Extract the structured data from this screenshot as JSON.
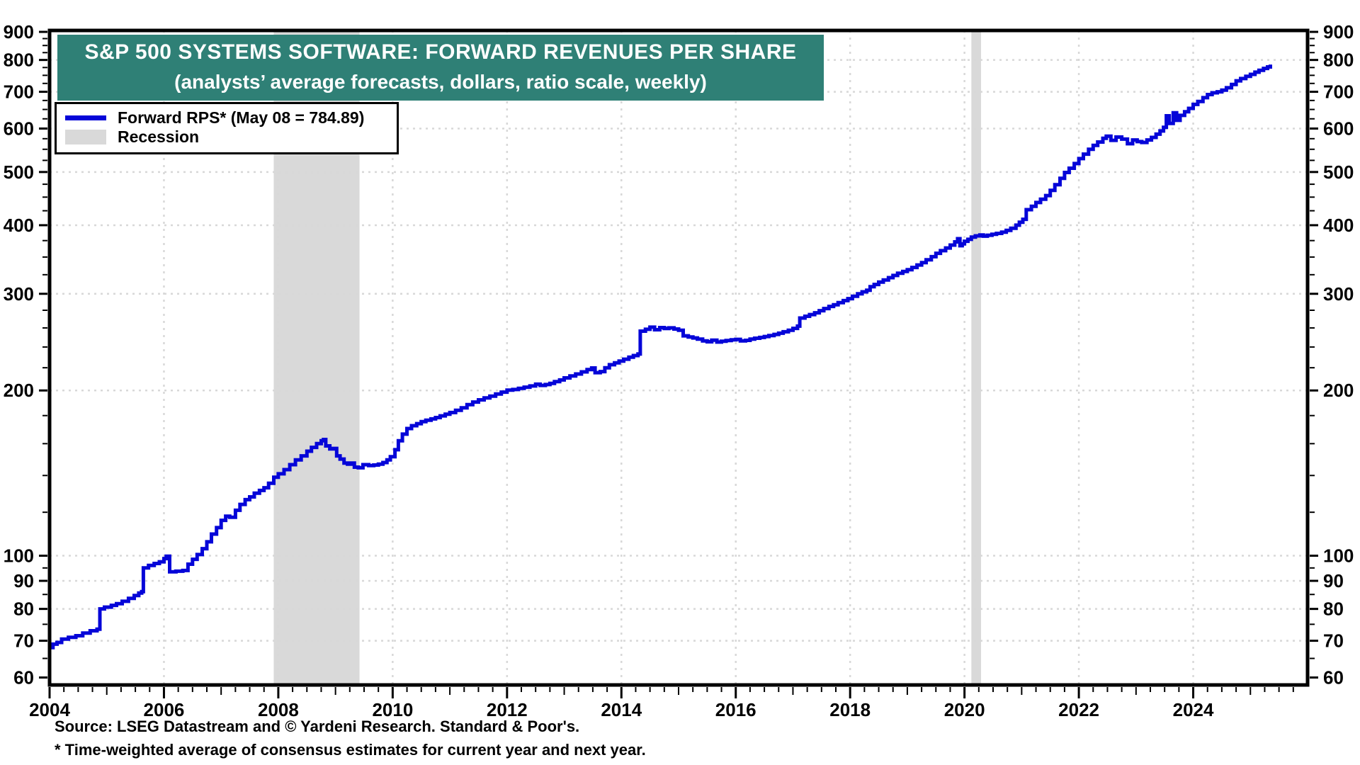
{
  "chart": {
    "title": "S&P 500 SYSTEMS SOFTWARE: FORWARD REVENUES PER SHARE",
    "subtitle": "(analysts’ average forecasts, dollars, ratio scale, weekly)",
    "banner_color": "#2F8076",
    "line_color": "#0505D8",
    "recession_color": "#D9D9D9",
    "grid_color": "#D8D8D8",
    "axis_color": "#000000"
  },
  "legend": {
    "entries": [
      {
        "label": "Forward RPS* (May 08 = 784.89)",
        "swatch": "line",
        "color": "#0505D8"
      },
      {
        "label": "Recession",
        "swatch": "box",
        "color": "#D9D9D9"
      }
    ]
  },
  "footer": {
    "source": "Source: LSEG Datastream and © Yardeni Research. Standard & Poor's.",
    "footnote": "* Time-weighted average of consensus estimates for current year and next year."
  },
  "chart_data": {
    "type": "line",
    "title": "S&P 500 Systems Software: Forward Revenues Per Share",
    "ylabel": "dollars (ratio scale)",
    "xlabel": "weekly",
    "scale": "log",
    "x_range": [
      2004,
      2026
    ],
    "y_range": [
      60,
      900
    ],
    "y_ticks_major": [
      900,
      800,
      700,
      600,
      500,
      400,
      300,
      200,
      100,
      90,
      80,
      70,
      60
    ],
    "y_ticks_minor": [
      65,
      75,
      85,
      95,
      120,
      140,
      160,
      180,
      220,
      240,
      260,
      280,
      325,
      350,
      375,
      425,
      450,
      475,
      525,
      550,
      575,
      625,
      650,
      675,
      725,
      750,
      775,
      825,
      850,
      875
    ],
    "y_gridlines": [
      800,
      700,
      600,
      500,
      400,
      300,
      200,
      100,
      90,
      80,
      70
    ],
    "x_ticks_labeled": [
      2004,
      2006,
      2008,
      2010,
      2012,
      2014,
      2016,
      2018,
      2020,
      2022,
      2024
    ],
    "x_gridlines": [
      2006,
      2008,
      2010,
      2012,
      2014,
      2016,
      2018,
      2020,
      2022,
      2024
    ],
    "x_minor_tick_step": 0.25,
    "recession_bands": [
      [
        2007.92,
        2009.42
      ],
      [
        2020.12,
        2020.29
      ]
    ],
    "last_value_label": "May 08 = 784.89",
    "series": [
      {
        "name": "Forward RPS*",
        "points": [
          [
            2004.0,
            68
          ],
          [
            2004.06,
            69
          ],
          [
            2004.13,
            69.5
          ],
          [
            2004.21,
            70.5
          ],
          [
            2004.33,
            71
          ],
          [
            2004.46,
            71.5
          ],
          [
            2004.58,
            72.3
          ],
          [
            2004.71,
            73
          ],
          [
            2004.83,
            73.5
          ],
          [
            2004.88,
            80
          ],
          [
            2004.96,
            80.6
          ],
          [
            2005.08,
            81.2
          ],
          [
            2005.17,
            81.8
          ],
          [
            2005.27,
            82.6
          ],
          [
            2005.38,
            83.6
          ],
          [
            2005.48,
            84.6
          ],
          [
            2005.56,
            85.5
          ],
          [
            2005.61,
            86
          ],
          [
            2005.64,
            95
          ],
          [
            2005.73,
            96
          ],
          [
            2005.83,
            96.8
          ],
          [
            2005.92,
            97.5
          ],
          [
            2006.0,
            98.8
          ],
          [
            2006.04,
            99.8
          ],
          [
            2006.1,
            93.5
          ],
          [
            2006.21,
            93.7
          ],
          [
            2006.33,
            94
          ],
          [
            2006.42,
            96.5
          ],
          [
            2006.5,
            98.5
          ],
          [
            2006.58,
            100.5
          ],
          [
            2006.67,
            103
          ],
          [
            2006.75,
            106
          ],
          [
            2006.83,
            109.5
          ],
          [
            2006.92,
            112.5
          ],
          [
            2007.0,
            116
          ],
          [
            2007.08,
            118
          ],
          [
            2007.15,
            117.5
          ],
          [
            2007.25,
            121
          ],
          [
            2007.33,
            124
          ],
          [
            2007.42,
            126.5
          ],
          [
            2007.5,
            128
          ],
          [
            2007.58,
            130
          ],
          [
            2007.67,
            131.5
          ],
          [
            2007.75,
            133
          ],
          [
            2007.83,
            135.5
          ],
          [
            2007.92,
            139
          ],
          [
            2008.0,
            141
          ],
          [
            2008.1,
            143.5
          ],
          [
            2008.2,
            146.5
          ],
          [
            2008.3,
            149.5
          ],
          [
            2008.4,
            152
          ],
          [
            2008.5,
            155
          ],
          [
            2008.58,
            157.5
          ],
          [
            2008.67,
            160
          ],
          [
            2008.75,
            162
          ],
          [
            2008.79,
            162.8
          ],
          [
            2008.83,
            158.5
          ],
          [
            2008.9,
            156.5
          ],
          [
            2008.96,
            156.8
          ],
          [
            2009.02,
            152
          ],
          [
            2009.08,
            150
          ],
          [
            2009.15,
            147.5
          ],
          [
            2009.21,
            146.8
          ],
          [
            2009.27,
            147.5
          ],
          [
            2009.33,
            145
          ],
          [
            2009.4,
            144.6
          ],
          [
            2009.48,
            146.5
          ],
          [
            2009.58,
            146
          ],
          [
            2009.67,
            146.3
          ],
          [
            2009.75,
            146.8
          ],
          [
            2009.83,
            147.8
          ],
          [
            2009.9,
            149.5
          ],
          [
            2009.96,
            151.5
          ],
          [
            2010.04,
            156
          ],
          [
            2010.1,
            162
          ],
          [
            2010.17,
            166.5
          ],
          [
            2010.25,
            170.5
          ],
          [
            2010.33,
            172.5
          ],
          [
            2010.42,
            174
          ],
          [
            2010.5,
            175.5
          ],
          [
            2010.58,
            176.5
          ],
          [
            2010.67,
            177.5
          ],
          [
            2010.75,
            178.5
          ],
          [
            2010.83,
            179.8
          ],
          [
            2010.92,
            181
          ],
          [
            2011.0,
            182.3
          ],
          [
            2011.1,
            184
          ],
          [
            2011.2,
            186
          ],
          [
            2011.3,
            188.5
          ],
          [
            2011.4,
            190.5
          ],
          [
            2011.5,
            192.3
          ],
          [
            2011.6,
            193.8
          ],
          [
            2011.7,
            195.3
          ],
          [
            2011.8,
            197
          ],
          [
            2011.9,
            198.6
          ],
          [
            2012.0,
            200.3
          ],
          [
            2012.1,
            200.8
          ],
          [
            2012.2,
            201.8
          ],
          [
            2012.3,
            202.8
          ],
          [
            2012.4,
            203.8
          ],
          [
            2012.5,
            205.3
          ],
          [
            2012.58,
            204.3
          ],
          [
            2012.67,
            205
          ],
          [
            2012.75,
            206
          ],
          [
            2012.83,
            207.5
          ],
          [
            2012.92,
            209
          ],
          [
            2013.0,
            210.8
          ],
          [
            2013.1,
            212.5
          ],
          [
            2013.2,
            214.3
          ],
          [
            2013.3,
            216.2
          ],
          [
            2013.4,
            218.3
          ],
          [
            2013.48,
            219.8
          ],
          [
            2013.54,
            215.5
          ],
          [
            2013.63,
            216.5
          ],
          [
            2013.71,
            220
          ],
          [
            2013.79,
            222.8
          ],
          [
            2013.88,
            224.6
          ],
          [
            2013.96,
            226.3
          ],
          [
            2014.04,
            228
          ],
          [
            2014.13,
            230
          ],
          [
            2014.21,
            231.5
          ],
          [
            2014.29,
            233
          ],
          [
            2014.33,
            256.5
          ],
          [
            2014.42,
            258.5
          ],
          [
            2014.5,
            260.8
          ],
          [
            2014.58,
            258
          ],
          [
            2014.67,
            260.3
          ],
          [
            2014.75,
            259.3
          ],
          [
            2014.83,
            260
          ],
          [
            2014.92,
            258.8
          ],
          [
            2015.0,
            257.5
          ],
          [
            2015.08,
            251.5
          ],
          [
            2015.17,
            250.3
          ],
          [
            2015.25,
            249.3
          ],
          [
            2015.33,
            248
          ],
          [
            2015.42,
            246.3
          ],
          [
            2015.5,
            245.3
          ],
          [
            2015.58,
            247
          ],
          [
            2015.67,
            245
          ],
          [
            2015.75,
            245.8
          ],
          [
            2015.83,
            246.6
          ],
          [
            2015.92,
            247.3
          ],
          [
            2016.0,
            247.8
          ],
          [
            2016.08,
            246.3
          ],
          [
            2016.17,
            246.8
          ],
          [
            2016.25,
            248
          ],
          [
            2016.33,
            249
          ],
          [
            2016.42,
            249.8
          ],
          [
            2016.5,
            250.8
          ],
          [
            2016.58,
            251.8
          ],
          [
            2016.67,
            253
          ],
          [
            2016.75,
            254.3
          ],
          [
            2016.83,
            255.8
          ],
          [
            2016.92,
            257.5
          ],
          [
            2017.0,
            259.5
          ],
          [
            2017.08,
            262
          ],
          [
            2017.12,
            271
          ],
          [
            2017.21,
            273
          ],
          [
            2017.29,
            275
          ],
          [
            2017.38,
            277
          ],
          [
            2017.46,
            279.5
          ],
          [
            2017.54,
            282
          ],
          [
            2017.63,
            284.5
          ],
          [
            2017.71,
            286.5
          ],
          [
            2017.79,
            289
          ],
          [
            2017.88,
            291.5
          ],
          [
            2017.96,
            294
          ],
          [
            2018.04,
            297
          ],
          [
            2018.13,
            300
          ],
          [
            2018.21,
            302.5
          ],
          [
            2018.29,
            304.5
          ],
          [
            2018.35,
            309
          ],
          [
            2018.42,
            312
          ],
          [
            2018.5,
            315
          ],
          [
            2018.58,
            318
          ],
          [
            2018.67,
            321
          ],
          [
            2018.75,
            324
          ],
          [
            2018.83,
            327
          ],
          [
            2018.92,
            329.5
          ],
          [
            2019.0,
            332
          ],
          [
            2019.08,
            335
          ],
          [
            2019.17,
            338.5
          ],
          [
            2019.25,
            342
          ],
          [
            2019.33,
            346
          ],
          [
            2019.42,
            350.5
          ],
          [
            2019.5,
            355.5
          ],
          [
            2019.58,
            359.5
          ],
          [
            2019.67,
            363.5
          ],
          [
            2019.75,
            368
          ],
          [
            2019.83,
            373
          ],
          [
            2019.88,
            378
          ],
          [
            2019.92,
            367
          ],
          [
            2019.96,
            370
          ],
          [
            2020.0,
            374
          ],
          [
            2020.06,
            377
          ],
          [
            2020.12,
            380.5
          ],
          [
            2020.19,
            382.5
          ],
          [
            2020.27,
            384
          ],
          [
            2020.33,
            382
          ],
          [
            2020.4,
            383.5
          ],
          [
            2020.48,
            385
          ],
          [
            2020.56,
            386.5
          ],
          [
            2020.65,
            388.5
          ],
          [
            2020.73,
            391.5
          ],
          [
            2020.81,
            395
          ],
          [
            2020.9,
            400
          ],
          [
            2020.96,
            405
          ],
          [
            2021.02,
            410
          ],
          [
            2021.08,
            427
          ],
          [
            2021.17,
            433
          ],
          [
            2021.25,
            440
          ],
          [
            2021.33,
            446
          ],
          [
            2021.42,
            453
          ],
          [
            2021.5,
            463
          ],
          [
            2021.58,
            474
          ],
          [
            2021.67,
            487
          ],
          [
            2021.75,
            499
          ],
          [
            2021.83,
            508
          ],
          [
            2021.92,
            518
          ],
          [
            2022.0,
            529
          ],
          [
            2022.08,
            539
          ],
          [
            2022.17,
            550
          ],
          [
            2022.25,
            559
          ],
          [
            2022.33,
            567
          ],
          [
            2022.42,
            576
          ],
          [
            2022.48,
            581
          ],
          [
            2022.56,
            571
          ],
          [
            2022.65,
            579
          ],
          [
            2022.75,
            574
          ],
          [
            2022.85,
            563
          ],
          [
            2022.94,
            572
          ],
          [
            2023.02,
            568
          ],
          [
            2023.1,
            566
          ],
          [
            2023.19,
            572
          ],
          [
            2023.27,
            578
          ],
          [
            2023.35,
            586
          ],
          [
            2023.42,
            594
          ],
          [
            2023.48,
            603
          ],
          [
            2023.53,
            633
          ],
          [
            2023.58,
            613
          ],
          [
            2023.65,
            641
          ],
          [
            2023.71,
            621
          ],
          [
            2023.77,
            634
          ],
          [
            2023.85,
            644
          ],
          [
            2023.92,
            653
          ],
          [
            2024.0,
            664
          ],
          [
            2024.08,
            672
          ],
          [
            2024.17,
            683
          ],
          [
            2024.25,
            692
          ],
          [
            2024.33,
            697
          ],
          [
            2024.42,
            700
          ],
          [
            2024.5,
            705
          ],
          [
            2024.58,
            712
          ],
          [
            2024.67,
            722
          ],
          [
            2024.75,
            733
          ],
          [
            2024.83,
            740
          ],
          [
            2024.92,
            747
          ],
          [
            2025.0,
            753
          ],
          [
            2025.08,
            760
          ],
          [
            2025.15,
            766
          ],
          [
            2025.23,
            772
          ],
          [
            2025.3,
            777
          ],
          [
            2025.35,
            784.89
          ]
        ]
      }
    ]
  }
}
